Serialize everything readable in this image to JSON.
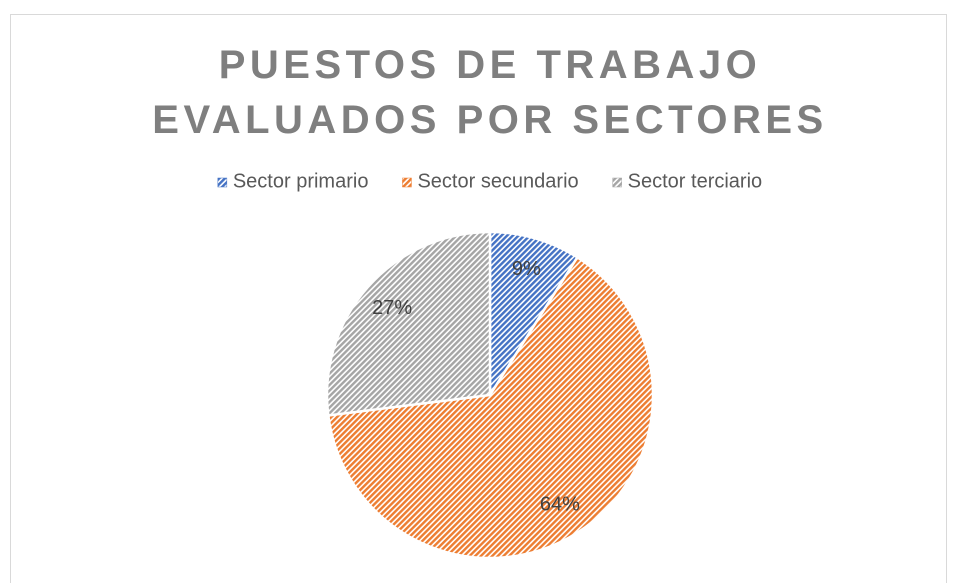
{
  "chart_data": {
    "type": "pie",
    "title": "PUESTOS DE TRABAJO EVALUADOS POR SECTORES",
    "categories": [
      "Sector primario",
      "Sector secundario",
      "Sector terciario"
    ],
    "values": [
      9,
      64,
      27
    ],
    "value_labels": [
      "9%",
      "64%",
      "27%"
    ],
    "colors": [
      "#4472c4",
      "#ed7d31",
      "#a5a5a5"
    ],
    "legend": "top"
  }
}
